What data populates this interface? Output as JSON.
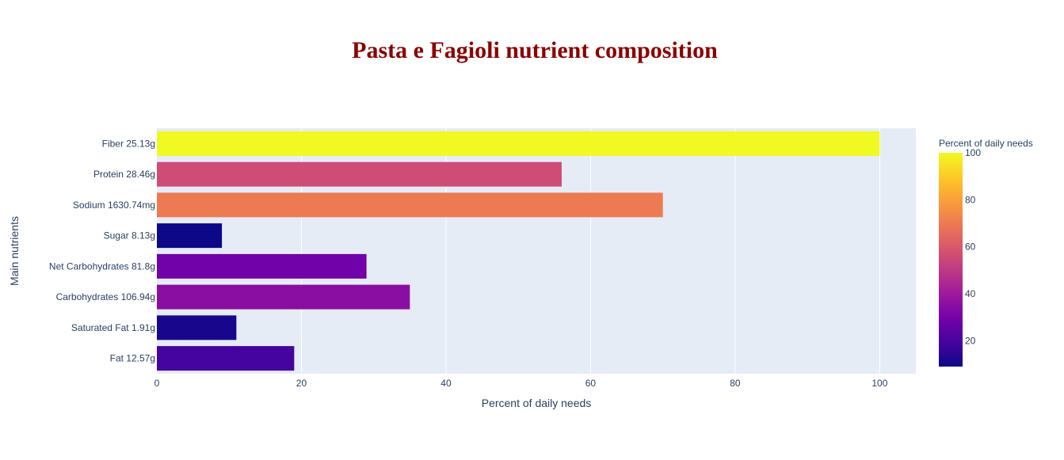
{
  "chart_data": {
    "type": "bar",
    "orientation": "horizontal",
    "title": "Pasta e Fagioli nutrient composition",
    "xlabel": "Percent of daily needs",
    "ylabel": "Main nutrients",
    "xlim": [
      0,
      105
    ],
    "xticks": [
      0,
      20,
      40,
      60,
      80,
      100
    ],
    "grid": true,
    "categories": [
      "Fiber 25.13g",
      "Protein 28.46g",
      "Sodium 1630.74mg",
      "Sugar 8.13g",
      "Net Carbohydrates 81.8g",
      "Carbohydrates 106.94g",
      "Saturated Fat 1.91g",
      "Fat 12.57g"
    ],
    "values": [
      100,
      56,
      70,
      9,
      29,
      35,
      11,
      19
    ],
    "colorscale": "plasma",
    "colorbar": {
      "title": "Percent of daily needs",
      "range": [
        9,
        100
      ],
      "ticks": [
        20,
        40,
        60,
        80,
        100
      ]
    },
    "colors": {
      "title": "#8b0000",
      "plot_bg": "#e5ecf6",
      "text": "#2a3f5f",
      "grid": "#ffffff"
    }
  }
}
